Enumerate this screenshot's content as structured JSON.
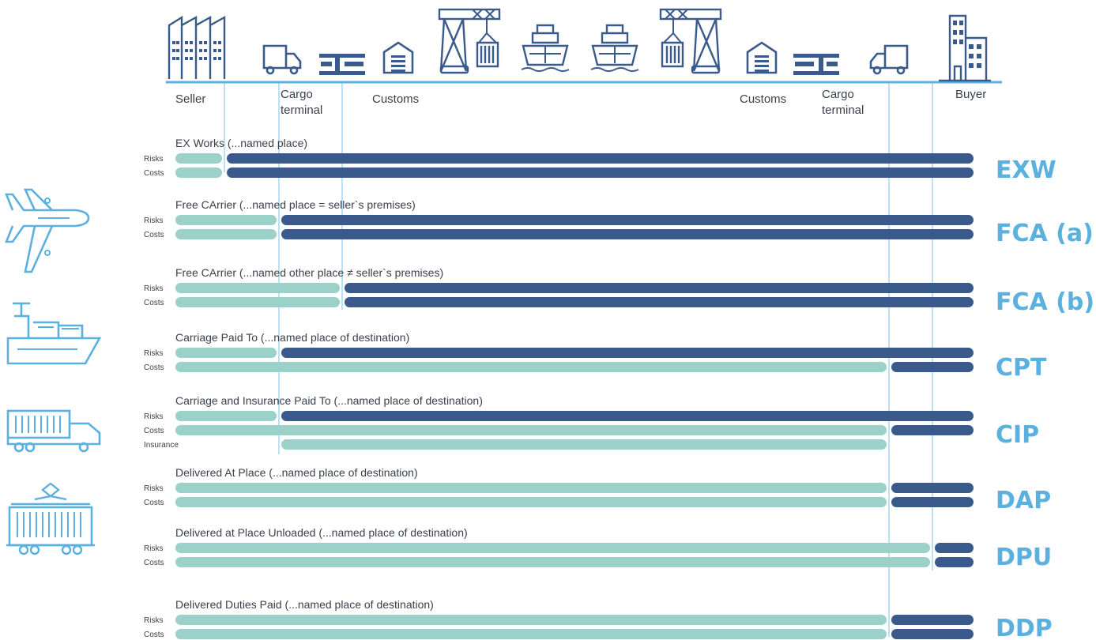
{
  "colors": {
    "seller": "#9bd1c8",
    "buyer": "#3a5a8c",
    "code": "#5ab0de",
    "icon_dark": "#3a5a8c",
    "icon_light": "#5ab0de",
    "guide": "#7cc3e6"
  },
  "locations": [
    {
      "id": "seller",
      "lines": [
        "Seller"
      ]
    },
    {
      "id": "cargo1",
      "lines": [
        "Cargo",
        "terminal"
      ]
    },
    {
      "id": "customs1",
      "lines": [
        "Customs"
      ]
    },
    {
      "id": "customs2",
      "lines": [
        "Customs"
      ]
    },
    {
      "id": "cargo2",
      "lines": [
        "Cargo",
        "terminal"
      ]
    },
    {
      "id": "buyer",
      "lines": [
        "Buyer"
      ]
    }
  ],
  "top_icons": [
    "factory-icon",
    "truck-icon",
    "cargo-terminal-icon",
    "warehouse-icon",
    "port-crane-icon",
    "container-ship-icon",
    "container-ship-icon",
    "port-crane-icon",
    "warehouse-icon",
    "cargo-terminal-icon",
    "truck-icon",
    "office-building-icon"
  ],
  "side_icons": [
    "airplane-icon",
    "cargo-ship-icon",
    "container-truck-icon",
    "freight-train-icon"
  ],
  "terms": [
    {
      "code": "EXW",
      "title": "EX Works (...named place)",
      "rows": [
        {
          "label": "Risks",
          "seller_until": "seller",
          "buyer_until": "buyer"
        },
        {
          "label": "Costs",
          "seller_until": "seller",
          "buyer_until": "buyer"
        }
      ]
    },
    {
      "code": "FCA (a)",
      "title": "Free CArrier (...named place = seller`s premises)",
      "rows": [
        {
          "label": "Risks",
          "seller_until": "cargo1",
          "buyer_until": "buyer"
        },
        {
          "label": "Costs",
          "seller_until": "cargo1",
          "buyer_until": "buyer"
        }
      ]
    },
    {
      "code": "FCA (b)",
      "title": "Free CArrier (...named other place ≠ seller`s premises)",
      "rows": [
        {
          "label": "Risks",
          "seller_until": "cargo1_out",
          "buyer_until": "buyer"
        },
        {
          "label": "Costs",
          "seller_until": "cargo1_out",
          "buyer_until": "buyer"
        }
      ]
    },
    {
      "code": "CPT",
      "title": "Carriage Paid To (...named place of destination)",
      "rows": [
        {
          "label": "Risks",
          "seller_until": "cargo1",
          "buyer_until": "buyer"
        },
        {
          "label": "Costs",
          "seller_until": "cargo2",
          "buyer_until": "buyer"
        }
      ]
    },
    {
      "code": "CIP",
      "title": "Carriage and Insurance Paid To (...named place of destination)",
      "rows": [
        {
          "label": "Risks",
          "seller_until": "cargo1",
          "buyer_until": "buyer"
        },
        {
          "label": "Costs",
          "seller_until": "cargo2",
          "buyer_until": "buyer"
        },
        {
          "label": "Insurance",
          "seller_until": "cargo2",
          "seller_from": "cargo1"
        }
      ]
    },
    {
      "code": "DAP",
      "title": "Delivered At Place (...named place of destination)",
      "rows": [
        {
          "label": "Risks",
          "seller_until": "cargo2",
          "buyer_until": "buyer"
        },
        {
          "label": "Costs",
          "seller_until": "cargo2",
          "buyer_until": "buyer"
        }
      ]
    },
    {
      "code": "DPU",
      "title": "Delivered at Place Unloaded (...named place of destination)",
      "rows": [
        {
          "label": "Risks",
          "seller_until": "buyer_in",
          "buyer_until": "buyer"
        },
        {
          "label": "Costs",
          "seller_until": "buyer_in",
          "buyer_until": "buyer"
        }
      ]
    },
    {
      "code": "DDP",
      "title": "Delivered Duties Paid (...named place of destination)",
      "rows": [
        {
          "label": "Risks",
          "seller_until": "cargo2",
          "buyer_until": "buyer"
        },
        {
          "label": "Costs",
          "seller_until": "cargo2",
          "buyer_until": "buyer"
        }
      ]
    }
  ]
}
